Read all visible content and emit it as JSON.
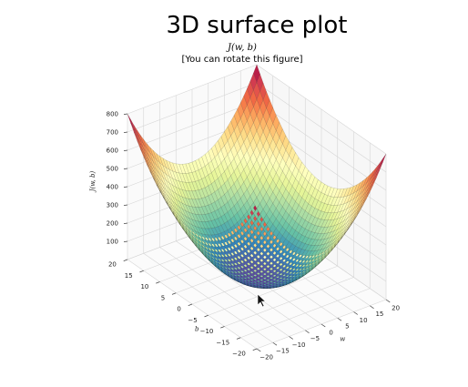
{
  "figure": {
    "title": "3D surface plot",
    "subtitle_math": "J(w, b)",
    "subtitle_note": "[You can rotate this figure]"
  },
  "chart_data": {
    "type": "surface3d",
    "function": "J(w,b) = w^2 + b^2 (approximate bowl read off the image)",
    "xlabel": "w",
    "ylabel": "b",
    "zlabel": "J(w, b)",
    "xlim": [
      -20,
      20
    ],
    "ylim": [
      -20,
      20
    ],
    "zlim": [
      0,
      800
    ],
    "x_ticks": [
      -20,
      -15,
      -10,
      -5,
      0,
      5,
      10,
      15,
      20
    ],
    "y_ticks": [
      -20,
      -15,
      -10,
      -5,
      0,
      5,
      10,
      15,
      20
    ],
    "z_ticks": [
      100,
      200,
      300,
      400,
      500,
      600,
      700,
      800
    ],
    "colormap": "Spectral_r",
    "grid": true,
    "legend": "none"
  }
}
